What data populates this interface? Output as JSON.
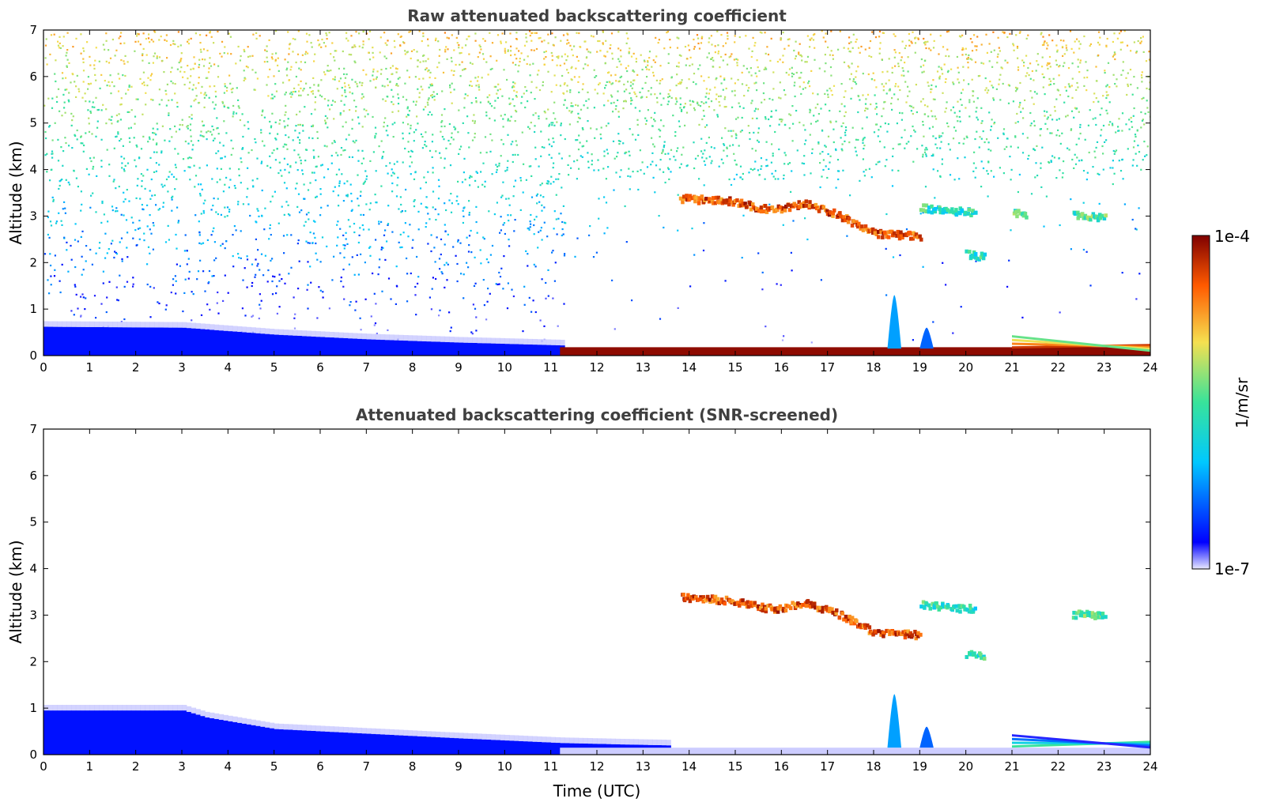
{
  "chart_data": [
    {
      "type": "heatmap",
      "title": "Raw attenuated backscattering coefficient",
      "xlabel": "",
      "ylabel": "Altitude (km)",
      "xlim": [
        0,
        24
      ],
      "ylim": [
        0,
        7
      ],
      "x_ticks": [
        "0",
        "1",
        "2",
        "3",
        "4",
        "5",
        "6",
        "7",
        "8",
        "9",
        "10",
        "11",
        "12",
        "13",
        "14",
        "15",
        "16",
        "17",
        "18",
        "19",
        "20",
        "21",
        "22",
        "23",
        "24"
      ],
      "y_ticks": [
        "0",
        "1",
        "2",
        "3",
        "4",
        "5",
        "6",
        "7"
      ],
      "features": [
        {
          "kind": "noise",
          "description": "background noise increasing with altitude",
          "x": [
            0,
            24
          ],
          "y": [
            0,
            7
          ],
          "level": 0.55
        },
        {
          "kind": "boundary_layer",
          "x": [
            0,
            3,
            5,
            7,
            9,
            11.2
          ],
          "top": [
            0.62,
            0.6,
            0.45,
            0.35,
            0.28,
            0.22
          ],
          "level": 0.18
        },
        {
          "kind": "surface_layer",
          "x": [
            11.2,
            24
          ],
          "top": 0.18,
          "level": 0.98
        },
        {
          "kind": "cloud_layer",
          "x": [
            13.8,
            14.8,
            15.8,
            16.5,
            17.2,
            18.0,
            19.0
          ],
          "y": [
            3.35,
            3.3,
            3.1,
            3.25,
            3.0,
            2.6,
            2.55
          ],
          "level": 0.85
        },
        {
          "kind": "cloud_layer",
          "x": [
            19.0,
            19.5,
            20.2
          ],
          "y": [
            3.15,
            3.1,
            3.05
          ],
          "level": 0.45
        },
        {
          "kind": "cloud_layer",
          "x": [
            21.0,
            21.3
          ],
          "y": [
            3.05,
            3.0
          ],
          "level": 0.5
        },
        {
          "kind": "cloud_layer",
          "x": [
            22.3,
            23.0
          ],
          "y": [
            3.0,
            2.95
          ],
          "level": 0.5
        },
        {
          "kind": "cloud_patch",
          "x": [
            20.0,
            20.4
          ],
          "y": [
            2.15,
            2.1
          ],
          "level": 0.45
        },
        {
          "kind": "plume",
          "x": [
            18.3,
            18.6
          ],
          "top": 1.3,
          "level": 0.3
        },
        {
          "kind": "plume",
          "x": [
            19.0,
            19.3
          ],
          "top": 0.6,
          "level": 0.25
        },
        {
          "kind": "low_cloud",
          "x": [
            21.0,
            24.0
          ],
          "y": [
            0.6,
            0.25
          ],
          "level": 0.9
        }
      ]
    },
    {
      "type": "heatmap",
      "title": "Attenuated backscattering coefficient (SNR-screened)",
      "xlabel": "Time (UTC)",
      "ylabel": "Altitude (km)",
      "xlim": [
        0,
        24
      ],
      "ylim": [
        0,
        7
      ],
      "x_ticks": [
        "0",
        "1",
        "2",
        "3",
        "4",
        "5",
        "6",
        "7",
        "8",
        "9",
        "10",
        "11",
        "12",
        "13",
        "14",
        "15",
        "16",
        "17",
        "18",
        "19",
        "20",
        "21",
        "22",
        "23",
        "24"
      ],
      "y_ticks": [
        "0",
        "1",
        "2",
        "3",
        "4",
        "5",
        "6",
        "7"
      ],
      "features": [
        {
          "kind": "boundary_layer",
          "x": [
            0,
            3,
            3.5,
            5,
            7,
            9,
            11.2,
            12.5,
            13.5
          ],
          "top": [
            0.95,
            0.95,
            0.8,
            0.55,
            0.45,
            0.35,
            0.25,
            0.22,
            0.2
          ],
          "level": 0.18
        },
        {
          "kind": "surface_layer",
          "x": [
            11.2,
            24
          ],
          "top": 0.15,
          "level": 0.02
        },
        {
          "kind": "cloud_layer",
          "x": [
            13.8,
            14.8,
            15.8,
            16.5,
            17.2,
            18.0,
            19.0
          ],
          "y": [
            3.35,
            3.3,
            3.1,
            3.25,
            3.0,
            2.6,
            2.55
          ],
          "level": 0.85
        },
        {
          "kind": "cloud_layer",
          "x": [
            19.0,
            19.5,
            20.2
          ],
          "y": [
            3.2,
            3.15,
            3.1
          ],
          "level": 0.45
        },
        {
          "kind": "cloud_layer",
          "x": [
            22.3,
            23.0
          ],
          "y": [
            3.0,
            2.95
          ],
          "level": 0.5
        },
        {
          "kind": "cloud_patch",
          "x": [
            20.0,
            20.4
          ],
          "y": [
            2.15,
            2.1
          ],
          "level": 0.45
        },
        {
          "kind": "plume",
          "x": [
            18.3,
            18.6
          ],
          "top": 1.3,
          "level": 0.3
        },
        {
          "kind": "plume",
          "x": [
            19.0,
            19.3
          ],
          "top": 0.6,
          "level": 0.25
        },
        {
          "kind": "low_cloud",
          "x": [
            21.0,
            24.0
          ],
          "y": [
            0.6,
            0.3
          ],
          "level": 0.5
        }
      ]
    }
  ],
  "colorbar": {
    "label": "1/m/sr",
    "min_label": "1e-7",
    "max_label": "1e-4",
    "scale": "log",
    "colormap": "jet",
    "colors": [
      "#e8e8ff",
      "#0000ff",
      "#00c8ff",
      "#38e39a",
      "#f5e050",
      "#ff5a00",
      "#7f0000"
    ]
  }
}
